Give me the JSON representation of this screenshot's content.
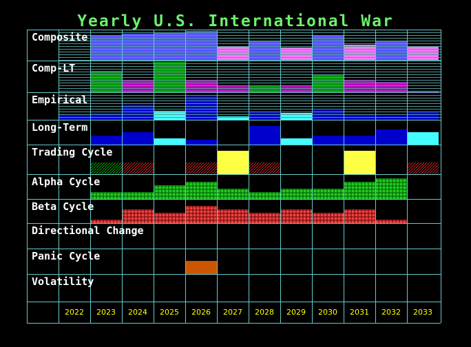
{
  "title": "Yearly U.S. International War",
  "chart_data": {
    "type": "table",
    "columns": [
      "2022",
      "2023",
      "2024",
      "2025",
      "2026",
      "2027",
      "2028",
      "2029",
      "2030",
      "2031",
      "2032",
      "2033"
    ],
    "rows": [
      {
        "label": "Composite",
        "kind": "bars",
        "color": "#5555ff",
        "color_low": "#ff77ff",
        "values": [
          null,
          0.82,
          0.86,
          0.9,
          0.95,
          0.45,
          0.64,
          0.42,
          0.8,
          0.5,
          0.62,
          0.45
        ],
        "low": [
          false,
          false,
          false,
          false,
          false,
          true,
          false,
          true,
          false,
          true,
          false,
          true
        ]
      },
      {
        "label": "Comp-LT",
        "kind": "bars",
        "color": "#009900",
        "color_low": "#bb00bb",
        "values": [
          null,
          0.67,
          0.4,
          0.95,
          0.4,
          0.2,
          0.22,
          0.2,
          0.55,
          0.4,
          0.32,
          0.05
        ],
        "low": [
          false,
          false,
          true,
          false,
          true,
          true,
          false,
          true,
          false,
          true,
          true,
          true
        ]
      },
      {
        "label": "Empirical",
        "kind": "bars",
        "color": "#0000cc",
        "color_light": "#44ffff",
        "values": [
          0.18,
          0.25,
          0.55,
          0.33,
          0.85,
          0.12,
          0.3,
          0.25,
          0.35,
          0.2,
          0.15,
          0.3
        ],
        "light": [
          false,
          false,
          false,
          true,
          false,
          true,
          false,
          true,
          false,
          false,
          false,
          false
        ]
      },
      {
        "label": "Long-Term",
        "kind": "bars",
        "color": "#0000cc",
        "color_light": "#44ffff",
        "values": [
          null,
          0.35,
          0.5,
          0.25,
          0.2,
          null,
          0.75,
          0.25,
          0.35,
          0.35,
          0.62,
          0.5
        ],
        "light": [
          false,
          false,
          false,
          true,
          false,
          false,
          false,
          true,
          false,
          false,
          false,
          true
        ]
      },
      {
        "label": "Trading Cycle",
        "kind": "trading",
        "solid": [
          null,
          null,
          null,
          null,
          null,
          0.78,
          null,
          null,
          null,
          0.78,
          null,
          null
        ],
        "hatch": [
          null,
          "green",
          "red",
          null,
          "red",
          null,
          "red",
          null,
          null,
          null,
          null,
          "red"
        ]
      },
      {
        "label": "Alpha Cycle",
        "kind": "grid",
        "color": "#00aa00",
        "values": [
          null,
          0.25,
          0.25,
          0.55,
          0.7,
          0.4,
          0.22,
          0.4,
          0.4,
          0.7,
          0.85,
          null
        ]
      },
      {
        "label": "Beta Cycle",
        "kind": "grid",
        "color": "#dd3333",
        "values": [
          null,
          0.18,
          0.55,
          0.4,
          0.78,
          0.55,
          0.4,
          0.55,
          0.4,
          0.55,
          0.18,
          null
        ]
      },
      {
        "label": "Directional Change",
        "kind": "blank"
      },
      {
        "label": "Panic Cycle",
        "kind": "bars",
        "color": "#cc5500",
        "values": [
          null,
          null,
          null,
          null,
          0.52,
          null,
          null,
          null,
          null,
          null,
          null,
          null
        ]
      },
      {
        "label": "Volatility",
        "kind": "blank"
      }
    ]
  }
}
